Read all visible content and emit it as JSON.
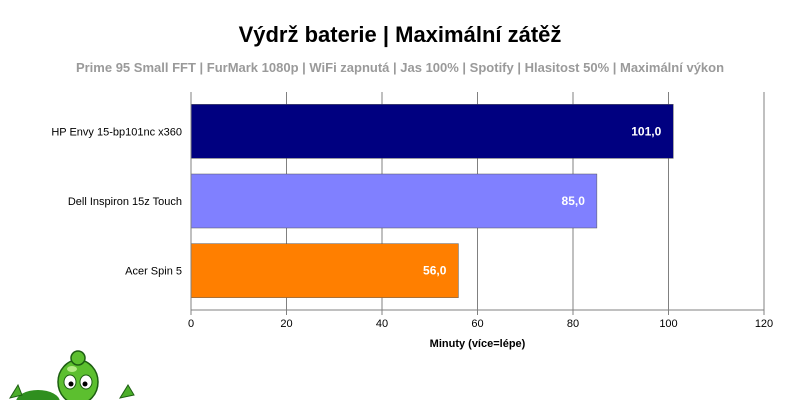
{
  "chart_data": {
    "type": "bar",
    "orientation": "horizontal",
    "title": "Výdrž baterie | Maximální zátěž",
    "subtitle": "Prime 95 Small FFT | FurMark 1080p | WiFi zapnutá | Jas 100% | Spotify | Hlasitost 50% | Maximální výkon",
    "xlabel": "Minuty (více=lépe)",
    "xlim": [
      0,
      120
    ],
    "xticks": [
      0,
      20,
      40,
      60,
      80,
      100,
      120
    ],
    "grid": true,
    "categories": [
      "HP Envy 15-bp101nc x360",
      "Dell Inspiron 15z Touch",
      "Acer Spin 5"
    ],
    "values": [
      101.0,
      85.0,
      56.0
    ],
    "value_labels": [
      "101,0",
      "85,0",
      "56,0"
    ],
    "colors": [
      "#000080",
      "#8080ff",
      "#ff7f00"
    ]
  },
  "mascot": {
    "icon": "green-alien-mascot-icon"
  }
}
